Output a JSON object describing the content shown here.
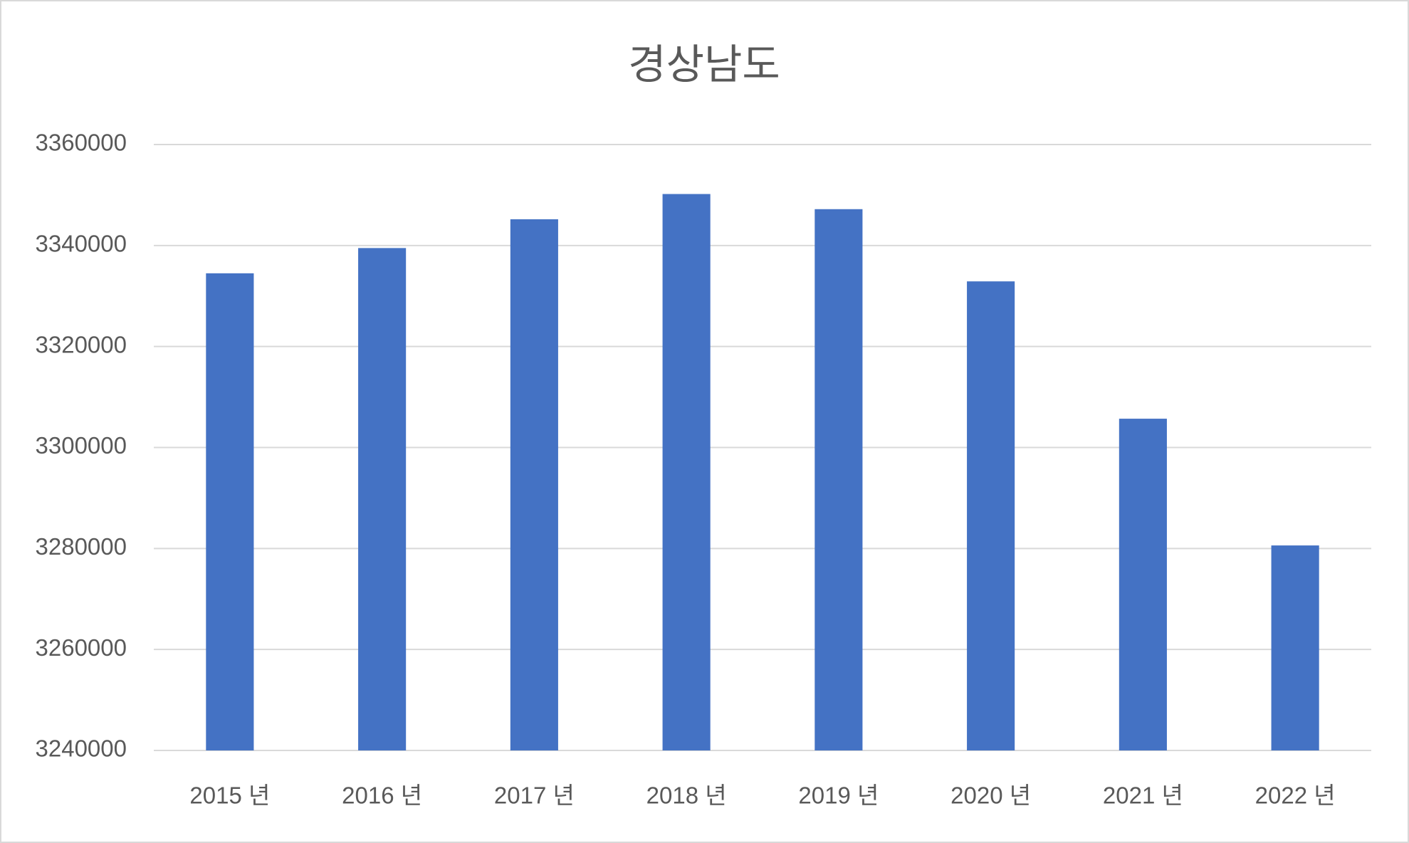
{
  "chart_data": {
    "type": "bar",
    "title": "경상남도",
    "categories": [
      "2015 년",
      "2016 년",
      "2017 년",
      "2018 년",
      "2019 년",
      "2020 년",
      "2021 년",
      "2022 년"
    ],
    "values": [
      3334500,
      3339500,
      3345200,
      3350200,
      3347200,
      3332900,
      3305700,
      3280600
    ],
    "color": "#4472c4",
    "ylim": [
      3240000,
      3360000
    ],
    "yticks": [
      3240000,
      3260000,
      3280000,
      3300000,
      3320000,
      3340000,
      3360000
    ],
    "grid": true
  }
}
